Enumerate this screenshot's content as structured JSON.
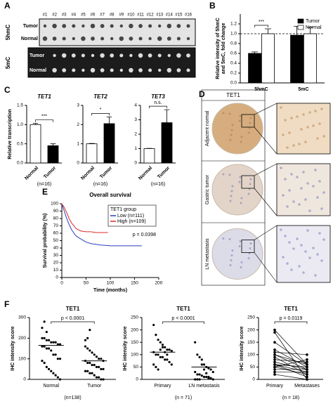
{
  "panel_labels": [
    "A",
    "B",
    "C",
    "D",
    "E",
    "F"
  ],
  "blot": {
    "columns": [
      "#1",
      "#2",
      "#3",
      "#4",
      "#5",
      "#6",
      "#7",
      "#8",
      "#9",
      "#10",
      "#11",
      "#12",
      "#13",
      "#14",
      "#15",
      "#16"
    ],
    "blocks": [
      {
        "name": "5hmC",
        "rows": [
          "Tumor",
          "Normal"
        ]
      },
      {
        "name": "5mC",
        "rows": [
          "Tumor",
          "Normal"
        ]
      }
    ]
  },
  "ihc": {
    "title": "TET1",
    "rows": [
      "Adjacent normal",
      "Gastric tumor",
      "LN metastasis"
    ]
  },
  "chart_data": [
    {
      "type": "bar",
      "ylabel": [
        "Relative intensity of 5hmC",
        "and 5mC, fold change"
      ],
      "categories": [
        "5hmC",
        "5mC"
      ],
      "ylim": [
        0,
        1.4
      ],
      "yticks": [
        {
          "value": 0,
          "label": "0.0"
        },
        {
          "value": 0.2,
          "label": "0.2"
        },
        {
          "value": 0.4,
          "label": "0.4"
        },
        {
          "value": 0.6,
          "label": "0.6"
        },
        {
          "value": 0.8,
          "label": "0.8"
        },
        {
          "value": 1,
          "label": "1.0"
        },
        {
          "value": 1.2,
          "label": "1.2"
        }
      ],
      "series": [
        {
          "name": "Tumor",
          "color": "#000000",
          "values": [
            0.6,
            0.97
          ],
          "errors": [
            0.03,
            0.18
          ]
        },
        {
          "name": "Normal",
          "color": "#ffffff",
          "values": [
            1.0,
            1.0
          ],
          "errors": [
            0.1,
            0.13
          ]
        }
      ],
      "reference_line": 1.0,
      "annotation": "***"
    },
    {
      "type": "bar",
      "title": "TET1",
      "ylabel": [
        "Relative transcription"
      ],
      "categories": [
        "Normal",
        "Tumor"
      ],
      "values": [
        1.0,
        0.45
      ],
      "errors": [
        0.03,
        0.05
      ],
      "colors": [
        "#ffffff",
        "#000000"
      ],
      "ylim": [
        0,
        1.5
      ],
      "yticks": [
        {
          "value": 0,
          "label": "0.0"
        },
        {
          "value": 0.5,
          "label": "0.5"
        },
        {
          "value": 1,
          "label": "1.0"
        },
        {
          "value": 1.5,
          "label": "1.5"
        }
      ],
      "annotation": "***",
      "note": "(n=16)"
    },
    {
      "type": "bar",
      "title": "TET2",
      "categories": [
        "Normal",
        "Tumor"
      ],
      "values": [
        1.0,
        2.05
      ],
      "errors": [
        0.02,
        0.35
      ],
      "colors": [
        "#ffffff",
        "#000000"
      ],
      "ylim": [
        0,
        3
      ],
      "yticks": [
        0,
        1,
        2,
        3
      ],
      "annotation": "*",
      "note": "(n=16)"
    },
    {
      "type": "bar",
      "title": "TET3",
      "categories": [
        "Normal",
        "Tumor"
      ],
      "values": [
        1.0,
        2.8
      ],
      "errors": [
        0.02,
        0.9
      ],
      "colors": [
        "#ffffff",
        "#000000"
      ],
      "ylim": [
        0,
        4
      ],
      "yticks": [
        0,
        1,
        2,
        3,
        4
      ],
      "annotation": "n.s.",
      "note": "(n=16)"
    },
    {
      "type": "line",
      "title": "Overall survival",
      "xlabel": "Time (months)",
      "ylabel": [
        "Survival probability (%)"
      ],
      "xlim": [
        0,
        200
      ],
      "xticks": [
        0,
        50,
        100,
        150,
        200
      ],
      "ylim": [
        0,
        100
      ],
      "yticks": [
        0,
        10,
        20,
        30,
        40,
        50,
        60,
        70,
        80,
        90,
        100
      ],
      "legend_title": "TET1 group",
      "annotation": "p = 0.0398",
      "series": [
        {
          "name": "Low (n=111)",
          "color": "#2a3fbf",
          "x": [
            0,
            5,
            10,
            15,
            20,
            25,
            30,
            40,
            50,
            60,
            70,
            80,
            100,
            120,
            165
          ],
          "values": [
            100,
            90,
            80,
            72,
            65,
            60,
            56,
            52,
            48,
            46,
            45,
            44,
            43,
            43,
            43
          ]
        },
        {
          "name": "High (n=109)",
          "color": "#e0282e",
          "x": [
            0,
            5,
            10,
            15,
            20,
            25,
            30,
            40,
            50,
            60,
            70,
            80,
            95
          ],
          "values": [
            100,
            95,
            88,
            80,
            74,
            70,
            66,
            63,
            62,
            62,
            61,
            61,
            61
          ]
        }
      ]
    },
    {
      "type": "strip",
      "title": "TET1",
      "ylabel": [
        "IHC intensity score"
      ],
      "categories": [
        "Normal",
        "Tumor"
      ],
      "ylim": [
        0,
        300
      ],
      "yticks": [
        0,
        100,
        200,
        300
      ],
      "annotation": "p < 0.0001",
      "note": "(n=138)",
      "values": [
        [
          200,
          200,
          190,
          190,
          180,
          180,
          180,
          170,
          170,
          160,
          160,
          150,
          150,
          140,
          120,
          120,
          100,
          100,
          90,
          80,
          60,
          50,
          40,
          30,
          20,
          10,
          0,
          250,
          280,
          230
        ],
        [
          160,
          150,
          140,
          130,
          120,
          110,
          100,
          100,
          90,
          90,
          80,
          80,
          70,
          70,
          60,
          60,
          50,
          50,
          40,
          40,
          30,
          30,
          20,
          10,
          10,
          0,
          0,
          190,
          200,
          240
        ]
      ],
      "medians": [
        165,
        90
      ]
    },
    {
      "type": "strip",
      "title": "TET1",
      "ylabel": [
        "IHC intensity score"
      ],
      "categories": [
        "Primary",
        "LN metastasis"
      ],
      "ylim": [
        0,
        250
      ],
      "yticks": [
        0,
        50,
        100,
        150,
        200,
        250
      ],
      "annotation": "p < 0.0001",
      "note": "(n = 71)",
      "values": [
        [
          220,
          180,
          160,
          150,
          140,
          130,
          120,
          120,
          115,
          110,
          100,
          100,
          90,
          90,
          80,
          80,
          70,
          60,
          60,
          50,
          40,
          120,
          130,
          110,
          100
        ],
        [
          150,
          100,
          90,
          80,
          60,
          50,
          45,
          40,
          30,
          30,
          20,
          20,
          15,
          10,
          10,
          5,
          5,
          0,
          0,
          0,
          0,
          60,
          40,
          25,
          10
        ]
      ],
      "medians": [
        110,
        50
      ]
    },
    {
      "type": "paired",
      "title": "TET1",
      "ylabel": [
        "IHC intensity score"
      ],
      "categories": [
        "Primary",
        "Metastases"
      ],
      "ylim": [
        0,
        250
      ],
      "yticks": [
        0,
        50,
        100,
        150,
        200,
        250
      ],
      "annotation": "p = 0.0119",
      "note": "(n = 18)",
      "values": [
        [
          200,
          190,
          150,
          120,
          110,
          100,
          100,
          90,
          80,
          70,
          60,
          60,
          60,
          50,
          50,
          40,
          30,
          20
        ],
        [
          60,
          0,
          60,
          50,
          100,
          40,
          60,
          20,
          70,
          40,
          50,
          30,
          10,
          80,
          20,
          40,
          30,
          0
        ]
      ]
    }
  ]
}
